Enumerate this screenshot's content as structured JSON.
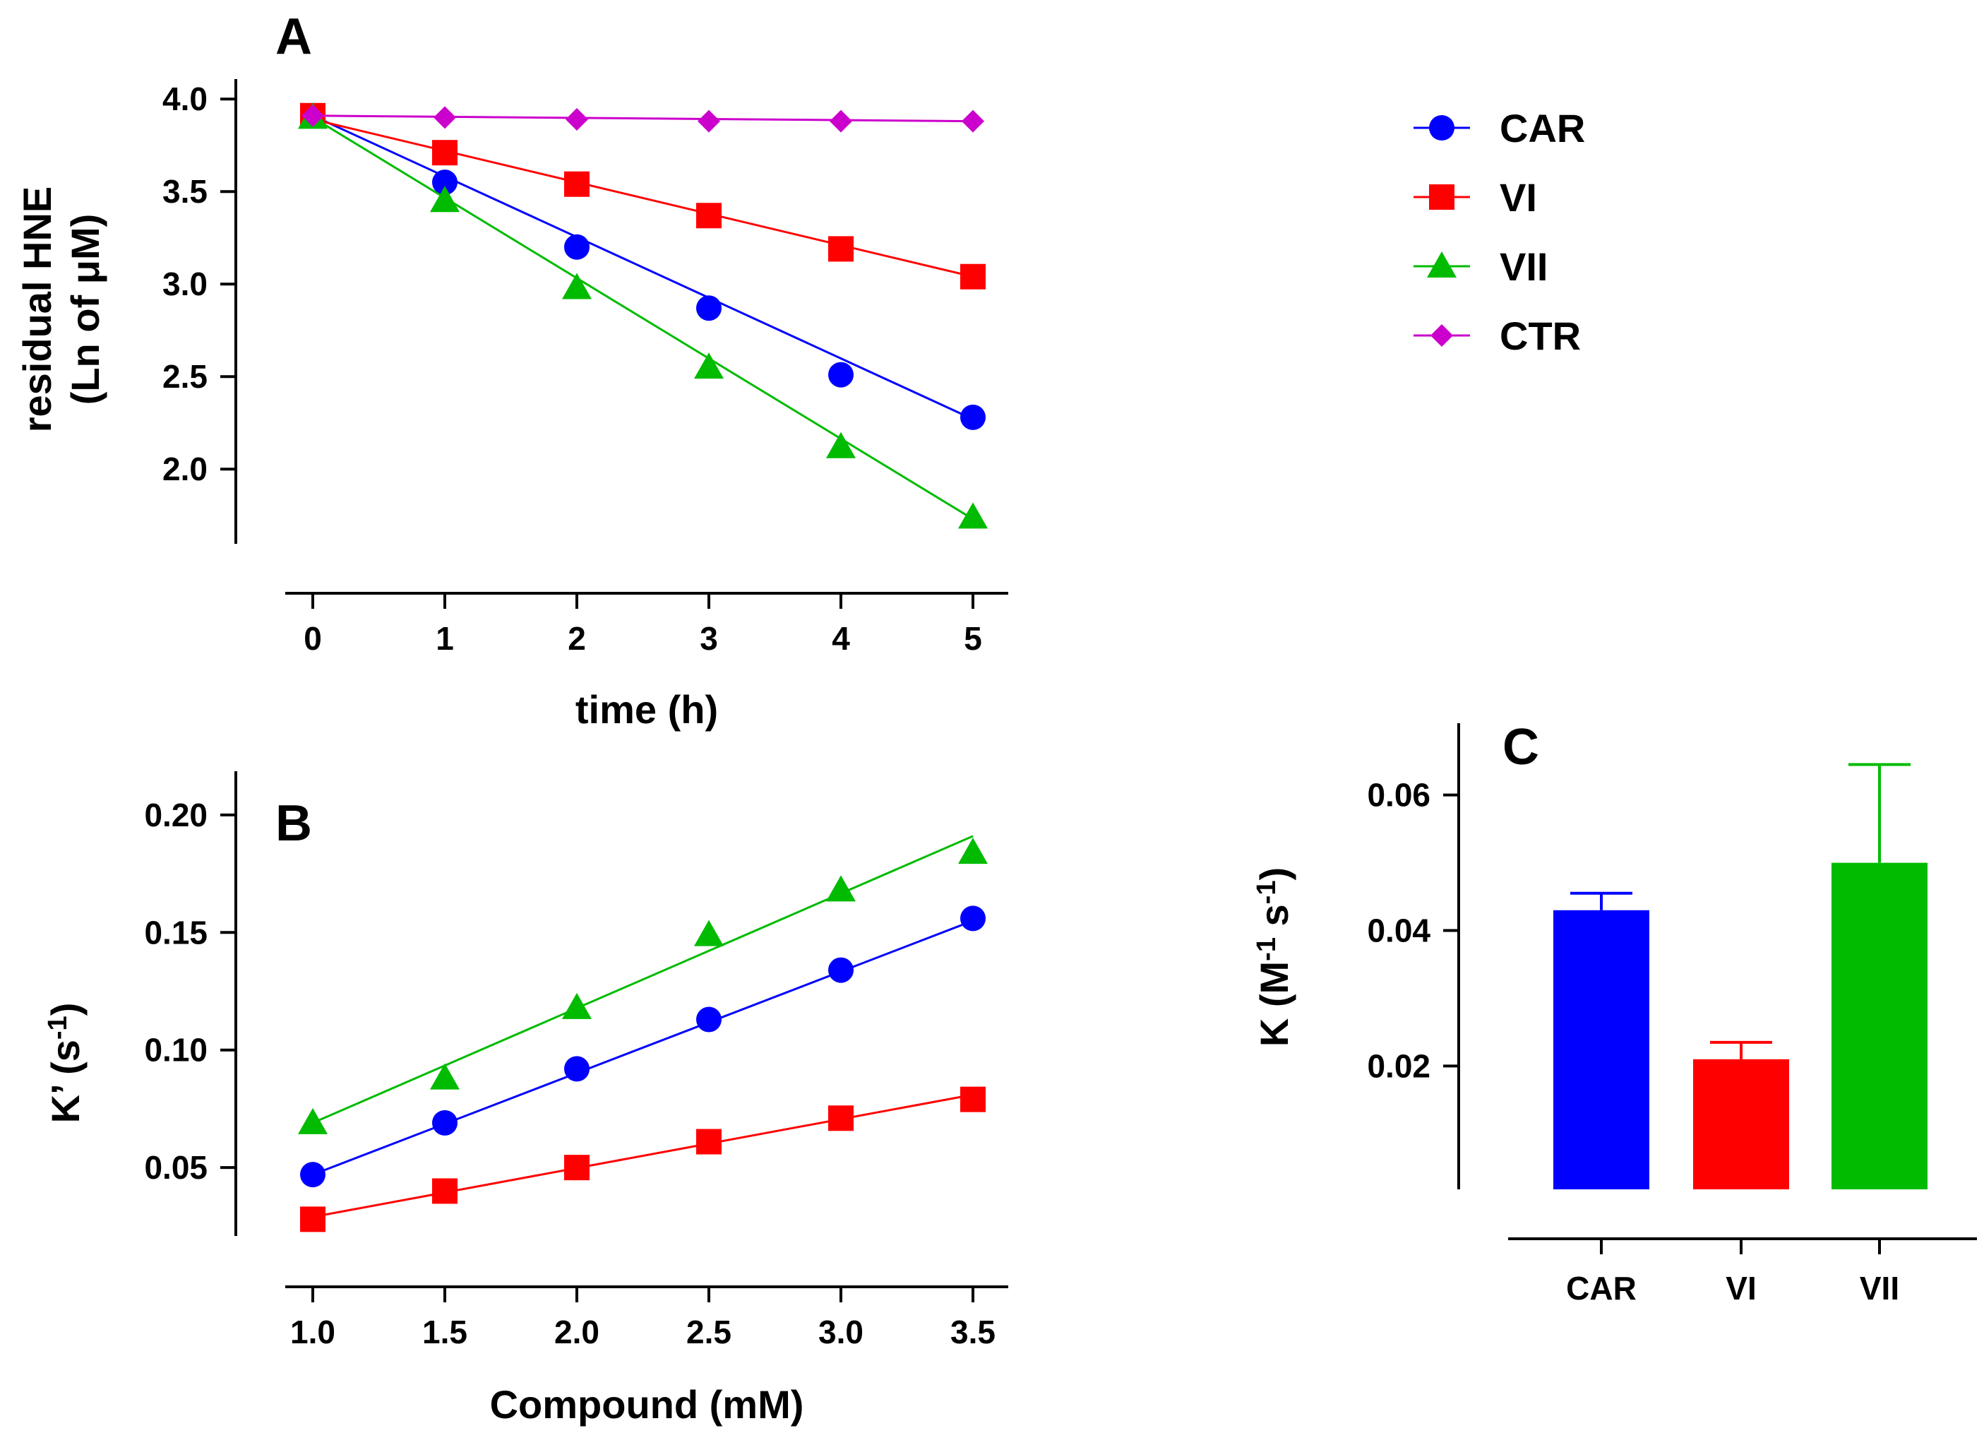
{
  "chart_data": [
    {
      "id": "A",
      "panel_label": "A",
      "type": "line",
      "xlabel": "time (h)",
      "ylabel_line1": "residual HNE",
      "ylabel_line2": "(Ln of μM)",
      "xlim": [
        0,
        5
      ],
      "ylim": [
        1.6,
        4.1
      ],
      "xticks": [
        "0",
        "1",
        "2",
        "3",
        "4",
        "5"
      ],
      "yticks": [
        "2.0",
        "2.5",
        "3.0",
        "3.5",
        "4.0"
      ],
      "x": [
        0,
        1,
        2,
        3,
        4,
        5
      ],
      "series": [
        {
          "name": "CAR",
          "color": "#0000ff",
          "marker": "circle",
          "values": [
            3.91,
            3.55,
            3.2,
            2.87,
            2.51,
            2.28
          ],
          "fit": [
            3.91,
            2.27
          ]
        },
        {
          "name": "VI",
          "color": "#ff0000",
          "marker": "square",
          "values": [
            3.91,
            3.71,
            3.54,
            3.37,
            3.19,
            3.04
          ],
          "fit": [
            3.89,
            3.04
          ]
        },
        {
          "name": "VII",
          "color": "#00bb00",
          "marker": "triangle",
          "values": [
            3.9,
            3.45,
            2.98,
            2.55,
            2.12,
            1.74
          ],
          "fit": [
            3.9,
            1.73
          ]
        },
        {
          "name": "CTR",
          "color": "#cc00cc",
          "marker": "diamond",
          "values": [
            3.91,
            3.9,
            3.89,
            3.88,
            3.88,
            3.88
          ],
          "fit": [
            3.91,
            3.88
          ]
        }
      ],
      "legend": "right"
    },
    {
      "id": "B",
      "panel_label": "B",
      "type": "line",
      "xlabel": "Compound (mM)",
      "ylabel": "K' (s-1)",
      "ylabel_main": "K’ (s",
      "ylabel_sup": "-1",
      "ylabel_end": ")",
      "xlim": [
        1.0,
        3.5
      ],
      "ylim": [
        0.02,
        0.2222
      ],
      "xticks": [
        "1.0",
        "1.5",
        "2.0",
        "2.5",
        "3.0",
        "3.5"
      ],
      "yticks": [
        "0.05",
        "0.10",
        "0.15",
        "0.20"
      ],
      "x": [
        1.0,
        1.5,
        2.0,
        2.5,
        3.0,
        3.5
      ],
      "series": [
        {
          "name": "CAR",
          "color": "#0000ff",
          "marker": "circle",
          "values": [
            0.047,
            0.069,
            0.092,
            0.113,
            0.134,
            0.156
          ],
          "fit": [
            0.047,
            0.155
          ]
        },
        {
          "name": "VI",
          "color": "#ff0000",
          "marker": "square",
          "values": [
            0.028,
            0.04,
            0.05,
            0.061,
            0.071,
            0.079
          ],
          "fit": [
            0.029,
            0.081
          ]
        },
        {
          "name": "VII",
          "color": "#00bb00",
          "marker": "triangle",
          "values": [
            0.069,
            0.088,
            0.118,
            0.149,
            0.168,
            0.184
          ],
          "fit": [
            0.069,
            0.191
          ]
        }
      ]
    },
    {
      "id": "C",
      "panel_label": "C",
      "type": "bar",
      "ylabel": "K (M-1 s-1)",
      "ylabel_parts": [
        "K (M",
        "-1",
        " s",
        "-1",
        ")"
      ],
      "categories": [
        "CAR",
        "VI",
        "VII"
      ],
      "values": [
        0.043,
        0.021,
        0.05
      ],
      "errors": [
        0.0025,
        0.0025,
        0.0145
      ],
      "colors": [
        "#0000ff",
        "#ff0000",
        "#00bb00"
      ],
      "ylim": [
        0.0018,
        0.0706
      ],
      "yticks": [
        "0.02",
        "0.04",
        "0.06"
      ]
    }
  ]
}
